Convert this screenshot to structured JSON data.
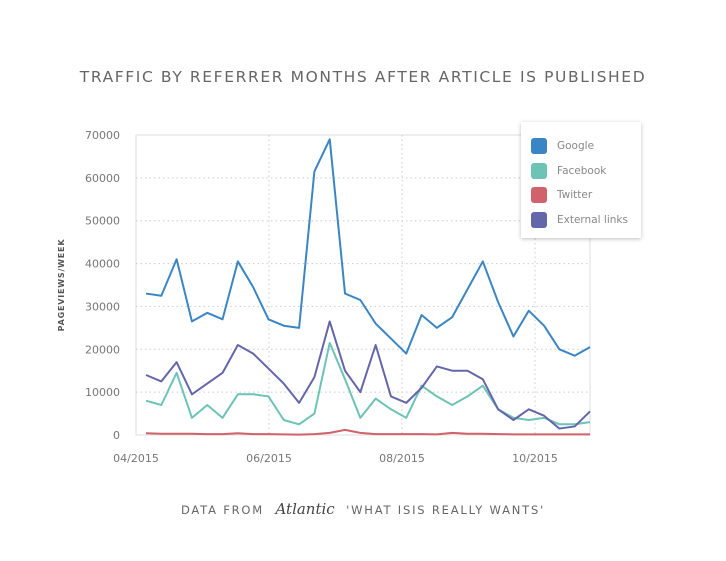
{
  "chart_data": {
    "type": "line",
    "title": "TRAFFIC BY REFERRER MONTHS AFTER ARTICLE IS PUBLISHED",
    "xlabel": "",
    "ylabel": "PAGEVIEWS/WEEK",
    "ylim": [
      0,
      70000
    ],
    "yticks": [
      "0",
      "10000",
      "20000",
      "30000",
      "40000",
      "50000",
      "60000",
      "70000"
    ],
    "xticks": [
      "04/2015",
      "06/2015",
      "08/2015",
      "10/2015"
    ],
    "grid": true,
    "legend_position": "top-right",
    "series": [
      {
        "name": "Google",
        "color": "#3a86c4",
        "values": [
          33000,
          32500,
          41000,
          26500,
          28500,
          27000,
          40500,
          34500,
          27000,
          25500,
          25000,
          61500,
          69000,
          33000,
          31500,
          26000,
          22500,
          19000,
          28000,
          25000,
          27500,
          34000,
          40500,
          31000,
          23000,
          29000,
          25500,
          20000,
          18500,
          20500
        ]
      },
      {
        "name": "Facebook",
        "color": "#6cc3b6",
        "values": [
          8000,
          7000,
          14500,
          4000,
          7000,
          4000,
          9500,
          9500,
          9000,
          3500,
          2500,
          5000,
          21500,
          13000,
          4000,
          8500,
          6000,
          4000,
          11500,
          9000,
          7000,
          9000,
          11500,
          6000,
          4000,
          3500,
          4000,
          2500,
          2500,
          3000
        ]
      },
      {
        "name": "Twitter",
        "color": "#d0626b",
        "values": [
          400,
          300,
          300,
          300,
          200,
          200,
          400,
          200,
          200,
          150,
          100,
          200,
          500,
          1200,
          500,
          200,
          200,
          200,
          200,
          150,
          500,
          300,
          300,
          200,
          150,
          150,
          150,
          150,
          150,
          150
        ]
      },
      {
        "name": "External links",
        "color": "#6466aa",
        "values": [
          14000,
          12500,
          17000,
          9500,
          12000,
          14500,
          21000,
          19000,
          15500,
          12000,
          7500,
          13500,
          26500,
          15000,
          10000,
          21000,
          9000,
          7500,
          11000,
          16000,
          15000,
          15000,
          13000,
          6000,
          3500,
          6000,
          4500,
          1500,
          2000,
          5500
        ]
      }
    ]
  },
  "footer": {
    "prefix": "DATA FROM",
    "logo": "The Atlantic",
    "suffix": "'WHAT ISIS REALLY WANTS'"
  }
}
